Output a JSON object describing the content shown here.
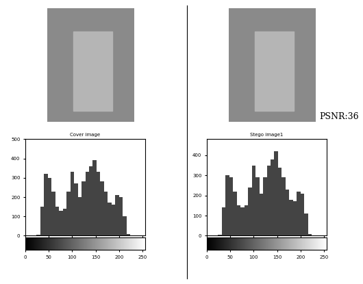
{
  "chart_data": [
    {
      "type": "histogram",
      "title": "Cover image",
      "bins": [
        0,
        8,
        16,
        24,
        32,
        40,
        48,
        56,
        64,
        72,
        80,
        88,
        96,
        104,
        112,
        120,
        128,
        136,
        144,
        152,
        160,
        168,
        176,
        184,
        192,
        200,
        208,
        216,
        224,
        232,
        240,
        248,
        256
      ],
      "values": [
        0,
        0,
        0,
        5,
        150,
        320,
        300,
        230,
        150,
        130,
        140,
        230,
        330,
        270,
        200,
        280,
        330,
        360,
        390,
        330,
        280,
        230,
        170,
        160,
        210,
        200,
        100,
        10,
        0,
        0,
        0,
        0
      ],
      "color": "#444444",
      "xlim": [
        0,
        256
      ],
      "xticks": [
        0,
        50,
        100,
        150,
        200,
        250
      ],
      "ylim": [
        0,
        500
      ],
      "yticks": [
        0,
        100,
        200,
        300,
        400,
        500
      ]
    },
    {
      "type": "histogram",
      "title": "Stego image1",
      "annotations": [
        "PSNR:36"
      ],
      "bins": [
        0,
        8,
        16,
        24,
        32,
        40,
        48,
        56,
        64,
        72,
        80,
        88,
        96,
        104,
        112,
        120,
        128,
        136,
        144,
        152,
        160,
        168,
        176,
        184,
        192,
        200,
        208,
        216,
        224,
        232,
        240,
        248,
        256
      ],
      "values": [
        0,
        0,
        0,
        5,
        140,
        300,
        290,
        220,
        150,
        140,
        150,
        240,
        350,
        290,
        210,
        290,
        350,
        380,
        420,
        340,
        290,
        230,
        180,
        170,
        220,
        210,
        110,
        10,
        0,
        0,
        0,
        0
      ],
      "color": "#444444",
      "xlim": [
        0,
        256
      ],
      "xticks": [
        0,
        50,
        100,
        150,
        200,
        250
      ],
      "ylim": [
        0,
        480
      ],
      "yticks": [
        0,
        100,
        200,
        300,
        400
      ]
    }
  ]
}
